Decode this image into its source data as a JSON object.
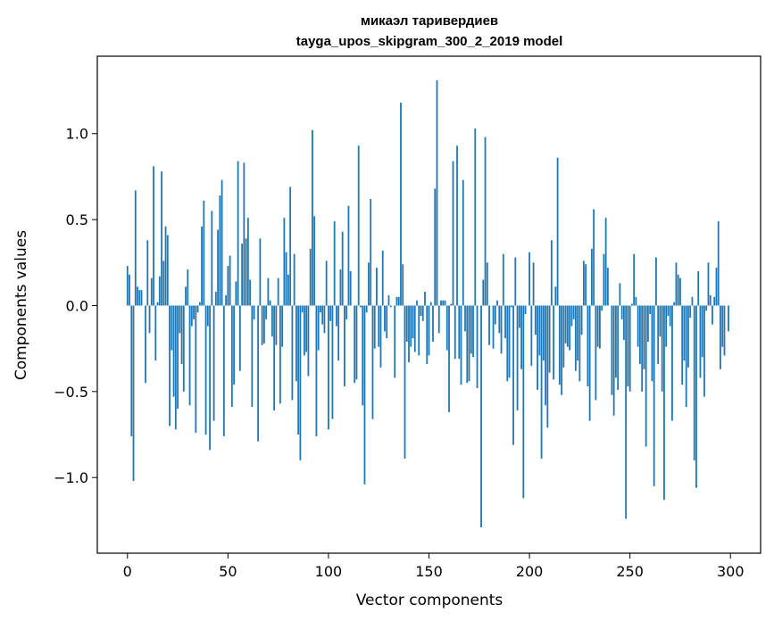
{
  "chart_data": {
    "type": "bar",
    "title": "микаэл таривердиев",
    "subtitle": "tayga_upos_skipgram_300_2_2019 model",
    "xlabel": "Vector components",
    "ylabel": "Components values",
    "xlim": [
      -15,
      315
    ],
    "ylim": [
      -1.44,
      1.45
    ],
    "xticks": [
      0,
      50,
      100,
      150,
      200,
      250,
      300
    ],
    "yticks": [
      -1.0,
      -0.5,
      0.0,
      0.5,
      1.0
    ],
    "xtick_labels": [
      "0",
      "50",
      "100",
      "150",
      "200",
      "250",
      "300"
    ],
    "ytick_labels": [
      "−1.0",
      "−0.5",
      "0.0",
      "0.5",
      "1.0"
    ],
    "bar_color": "#1f77b4",
    "grid": false,
    "x": [
      0,
      1,
      2,
      3,
      4,
      5,
      6,
      7,
      8,
      9,
      10,
      11,
      12,
      13,
      14,
      15,
      16,
      17,
      18,
      19,
      20,
      21,
      22,
      23,
      24,
      25,
      26,
      27,
      28,
      29,
      30,
      31,
      32,
      33,
      34,
      35,
      36,
      37,
      38,
      39,
      40,
      41,
      42,
      43,
      44,
      45,
      46,
      47,
      48,
      49,
      50,
      51,
      52,
      53,
      54,
      55,
      56,
      57,
      58,
      59,
      60,
      61,
      62,
      63,
      64,
      65,
      66,
      67,
      68,
      69,
      70,
      71,
      72,
      73,
      74,
      75,
      76,
      77,
      78,
      79,
      80,
      81,
      82,
      83,
      84,
      85,
      86,
      87,
      88,
      89,
      90,
      91,
      92,
      93,
      94,
      95,
      96,
      97,
      98,
      99,
      100,
      101,
      102,
      103,
      104,
      105,
      106,
      107,
      108,
      109,
      110,
      111,
      112,
      113,
      114,
      115,
      116,
      117,
      118,
      119,
      120,
      121,
      122,
      123,
      124,
      125,
      126,
      127,
      128,
      129,
      130,
      131,
      132,
      133,
      134,
      135,
      136,
      137,
      138,
      139,
      140,
      141,
      142,
      143,
      144,
      145,
      146,
      147,
      148,
      149,
      150,
      151,
      152,
      153,
      154,
      155,
      156,
      157,
      158,
      159,
      160,
      161,
      162,
      163,
      164,
      165,
      166,
      167,
      168,
      169,
      170,
      171,
      172,
      173,
      174,
      175,
      176,
      177,
      178,
      179,
      180,
      181,
      182,
      183,
      184,
      185,
      186,
      187,
      188,
      189,
      190,
      191,
      192,
      193,
      194,
      195,
      196,
      197,
      198,
      199,
      200,
      201,
      202,
      203,
      204,
      205,
      206,
      207,
      208,
      209,
      210,
      211,
      212,
      213,
      214,
      215,
      216,
      217,
      218,
      219,
      220,
      221,
      222,
      223,
      224,
      225,
      226,
      227,
      228,
      229,
      230,
      231,
      232,
      233,
      234,
      235,
      236,
      237,
      238,
      239,
      240,
      241,
      242,
      243,
      244,
      245,
      246,
      247,
      248,
      249,
      250,
      251,
      252,
      253,
      254,
      255,
      256,
      257,
      258,
      259,
      260,
      261,
      262,
      263,
      264,
      265,
      266,
      267,
      268,
      269,
      270,
      271,
      272,
      273,
      274,
      275,
      276,
      277,
      278,
      279,
      280,
      281,
      282,
      283,
      284,
      285,
      286,
      287,
      288,
      289,
      290,
      291,
      292,
      293,
      294,
      295,
      296,
      297,
      298,
      299
    ],
    "values": [
      0.23,
      0.18,
      -0.76,
      -1.02,
      0.67,
      0.11,
      0.09,
      0.09,
      0.0,
      -0.45,
      0.38,
      -0.16,
      0.16,
      0.81,
      -0.32,
      0.02,
      0.17,
      0.78,
      0.26,
      0.46,
      0.41,
      -0.7,
      -0.26,
      -0.53,
      -0.72,
      -0.6,
      -0.16,
      -0.34,
      -0.5,
      0.11,
      0.21,
      -0.58,
      -0.12,
      -0.08,
      -0.74,
      -0.04,
      0.02,
      0.46,
      0.61,
      -0.75,
      -0.12,
      -0.84,
      0.55,
      -0.67,
      0.08,
      0.44,
      0.64,
      0.73,
      -0.76,
      0.06,
      0.23,
      0.29,
      -0.59,
      -0.46,
      0.14,
      0.84,
      -0.38,
      0.36,
      0.83,
      0.39,
      0.51,
      0.15,
      -0.59,
      -0.08,
      0.0,
      -0.79,
      0.39,
      -0.23,
      -0.22,
      -0.08,
      0.16,
      0.03,
      -0.18,
      -0.61,
      -0.23,
      0.16,
      -0.57,
      -0.24,
      0.51,
      0.31,
      0.18,
      0.69,
      -0.55,
      0.3,
      -0.44,
      -0.75,
      -0.9,
      -0.04,
      -0.29,
      -0.27,
      -0.41,
      0.33,
      1.02,
      0.52,
      -0.76,
      -0.26,
      -0.04,
      -0.11,
      -0.16,
      0.26,
      -0.72,
      -0.09,
      -0.66,
      0.49,
      -0.12,
      -0.32,
      0.21,
      0.43,
      -0.47,
      -0.08,
      0.58,
      0.2,
      0.0,
      -0.45,
      -0.43,
      0.93,
      -0.01,
      -0.58,
      -1.04,
      -0.04,
      0.25,
      0.62,
      -0.66,
      -0.25,
      0.22,
      -0.24,
      -0.36,
      0.32,
      -0.15,
      -0.19,
      0.06,
      -0.01,
      0.0,
      -0.42,
      0.05,
      0.05,
      1.18,
      0.24,
      -0.89,
      -0.21,
      -0.33,
      -0.24,
      -0.19,
      -0.27,
      0.03,
      -0.29,
      -0.06,
      -0.09,
      0.08,
      -0.34,
      -0.29,
      0.02,
      -0.21,
      0.68,
      1.31,
      -0.16,
      0.03,
      0.03,
      0.03,
      -0.26,
      -0.62,
      0.01,
      0.84,
      -0.31,
      0.93,
      -0.31,
      -0.46,
      0.73,
      -0.15,
      -0.45,
      -0.44,
      -0.28,
      -0.3,
      1.03,
      -0.48,
      0.0,
      -1.29,
      0.15,
      0.98,
      0.25,
      -0.23,
      0.0,
      -0.25,
      -0.11,
      0.03,
      -0.16,
      -0.28,
      0.3,
      -0.19,
      -0.44,
      -0.42,
      -0.01,
      -0.81,
      0.28,
      -0.61,
      -0.13,
      -0.37,
      -1.12,
      -0.05,
      0.0,
      0.31,
      -0.35,
      0.25,
      -0.17,
      -0.49,
      -0.29,
      -0.89,
      -0.32,
      -0.58,
      -0.71,
      -0.39,
      0.38,
      -0.43,
      0.11,
      0.86,
      -0.46,
      -0.52,
      -0.36,
      -0.22,
      -0.24,
      -0.26,
      -0.12,
      -0.08,
      -0.38,
      -0.32,
      -0.44,
      -0.17,
      0.26,
      0.24,
      -0.47,
      -0.67,
      0.33,
      0.56,
      -0.55,
      -0.24,
      -0.25,
      -0.03,
      0.3,
      0.51,
      0.22,
      0.0,
      -0.52,
      -0.64,
      -0.42,
      -0.49,
      0.13,
      -0.08,
      -0.2,
      -1.24,
      -0.47,
      -0.5,
      0.01,
      0.3,
      0.05,
      -0.24,
      -0.34,
      -0.5,
      -0.37,
      -0.82,
      -0.21,
      -0.05,
      -0.44,
      -1.05,
      0.28,
      -0.34,
      -0.18,
      -0.5,
      -1.13,
      -0.24,
      -0.06,
      -0.12,
      -0.67,
      0.02,
      0.25,
      0.18,
      0.16,
      -0.46,
      -0.32,
      -0.59,
      -0.36,
      -0.07,
      0.05,
      -0.9,
      -1.06,
      0.2,
      -0.42,
      -0.3,
      -0.53,
      -0.03,
      0.25,
      0.06,
      -0.11,
      0.05,
      0.22,
      0.49,
      -0.37,
      -0.24,
      -0.29,
      0.0,
      -0.15
    ]
  }
}
